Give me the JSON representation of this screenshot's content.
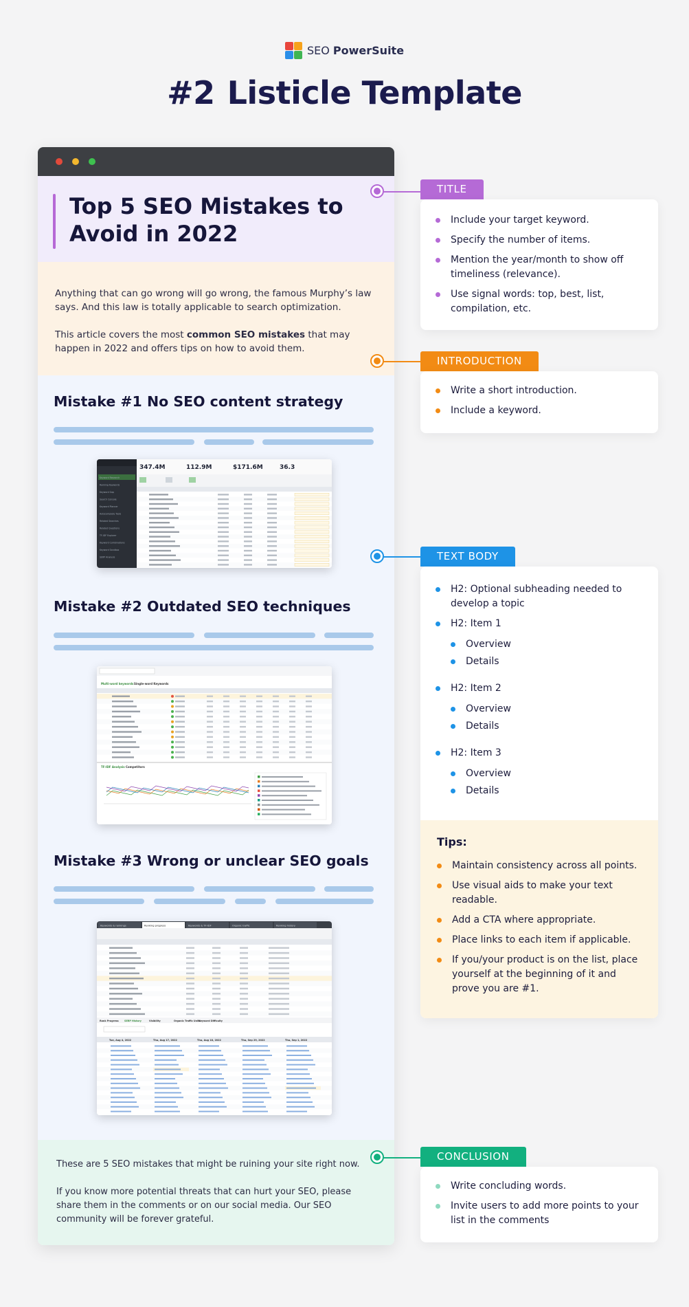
{
  "header": {
    "logo_text_regular": "SEO",
    "logo_text_bold": "PowerSuite",
    "title_number": "#2",
    "title_text": "Listicle Template"
  },
  "article": {
    "title": "Top 5 SEO Mistakes to Avoid in 2022",
    "intro_p1": "Anything that can go wrong will go wrong, the famous Murphy’s law says. And this law is totally applicable to search optimization.",
    "intro_p2_before": "This article covers the most ",
    "intro_p2_bold": "common SEO mistakes",
    "intro_p2_after": " that may happen in 2022 and offers tips on how to avoid them.",
    "mistake1": "Mistake #1 No SEO content strategy",
    "mistake2": "Mistake #2 Outdated SEO techniques",
    "mistake3": "Mistake #3 Wrong or unclear SEO goals",
    "concl_p1": "These are 5 SEO mistakes that might be ruining your site right now.",
    "concl_p2": "If you know more potential threats that can hurt your SEO, please share them in the comments or on our social media. Our SEO community will be forever grateful."
  },
  "screenshot1": {
    "stats": [
      "347.4M",
      "112.9M",
      "$171.6M",
      "36.3"
    ],
    "sidebar_items": [
      "Keyword Research",
      "Ranking Keywords",
      "Keyword Gap",
      "Search Console",
      "Keyword Planner",
      "Autocomplete Tools",
      "Related Searches",
      "Related Questions",
      "TF-IDF Explorer",
      "Keyword Combinations",
      "Keyword Sandbox",
      "SERP Analysis"
    ]
  },
  "screenshot2": {
    "tabs": [
      "Multi-word keywords",
      "Single-word Keywords"
    ],
    "panel_tabs": [
      "TF-IDF Analysis",
      "Competitors"
    ]
  },
  "screenshot3": {
    "tabs": [
      "Keywords & rankings",
      "Ranking progress",
      "Keywords & TF-IDF",
      "Organic traffic",
      "Ranking history"
    ],
    "bottom_tabs": [
      "Rank Progress",
      "SERP History",
      "Visibility",
      "Organic Traffic Units",
      "Keyword Difficulty"
    ],
    "dates": [
      "Tue, Aug 4, 2022",
      "Thu, Aug 17, 2022",
      "Thu, Aug 18, 2022",
      "Thu, Sep 29, 2022",
      "Thu, Sep 1, 2022"
    ]
  },
  "annotations": {
    "title": {
      "tag": "TITLE",
      "color": "#b56ad6",
      "items": [
        "Include your target keyword.",
        "Specify the number of items.",
        "Mention the year/month to show off timeliness (relevance).",
        "Use signal words: top, best, list, compilation, etc."
      ]
    },
    "introduction": {
      "tag": "INTRODUCTION",
      "color": "#f28b14",
      "items": [
        "Write a short introduction.",
        "Include a keyword."
      ]
    },
    "text_body": {
      "tag": "TEXT BODY",
      "color": "#1e93e6",
      "items": [
        "H2: Optional subheading needed to develop a topic",
        "H2: Item 1",
        "Overview",
        "Details",
        "H2: Item 2",
        "Overview",
        "Details",
        "H2: Item 3",
        "Overview",
        "Details"
      ]
    },
    "tips": {
      "heading": "Tips:",
      "color": "#f28b14",
      "items": [
        "Maintain consistency across all points.",
        "Use visual aids to make your text readable.",
        "Add a CTA where appropriate.",
        "Place links to each item if applicable.",
        "If you/your product is on the list, place yourself at the beginning of it and prove you are #1."
      ]
    },
    "conclusion": {
      "tag": "CONCLUSION",
      "color": "#12b07f",
      "bullet_color": "#8fd9bf",
      "items": [
        "Write concluding words.",
        "Invite users to add more points to your list in the comments"
      ]
    }
  }
}
